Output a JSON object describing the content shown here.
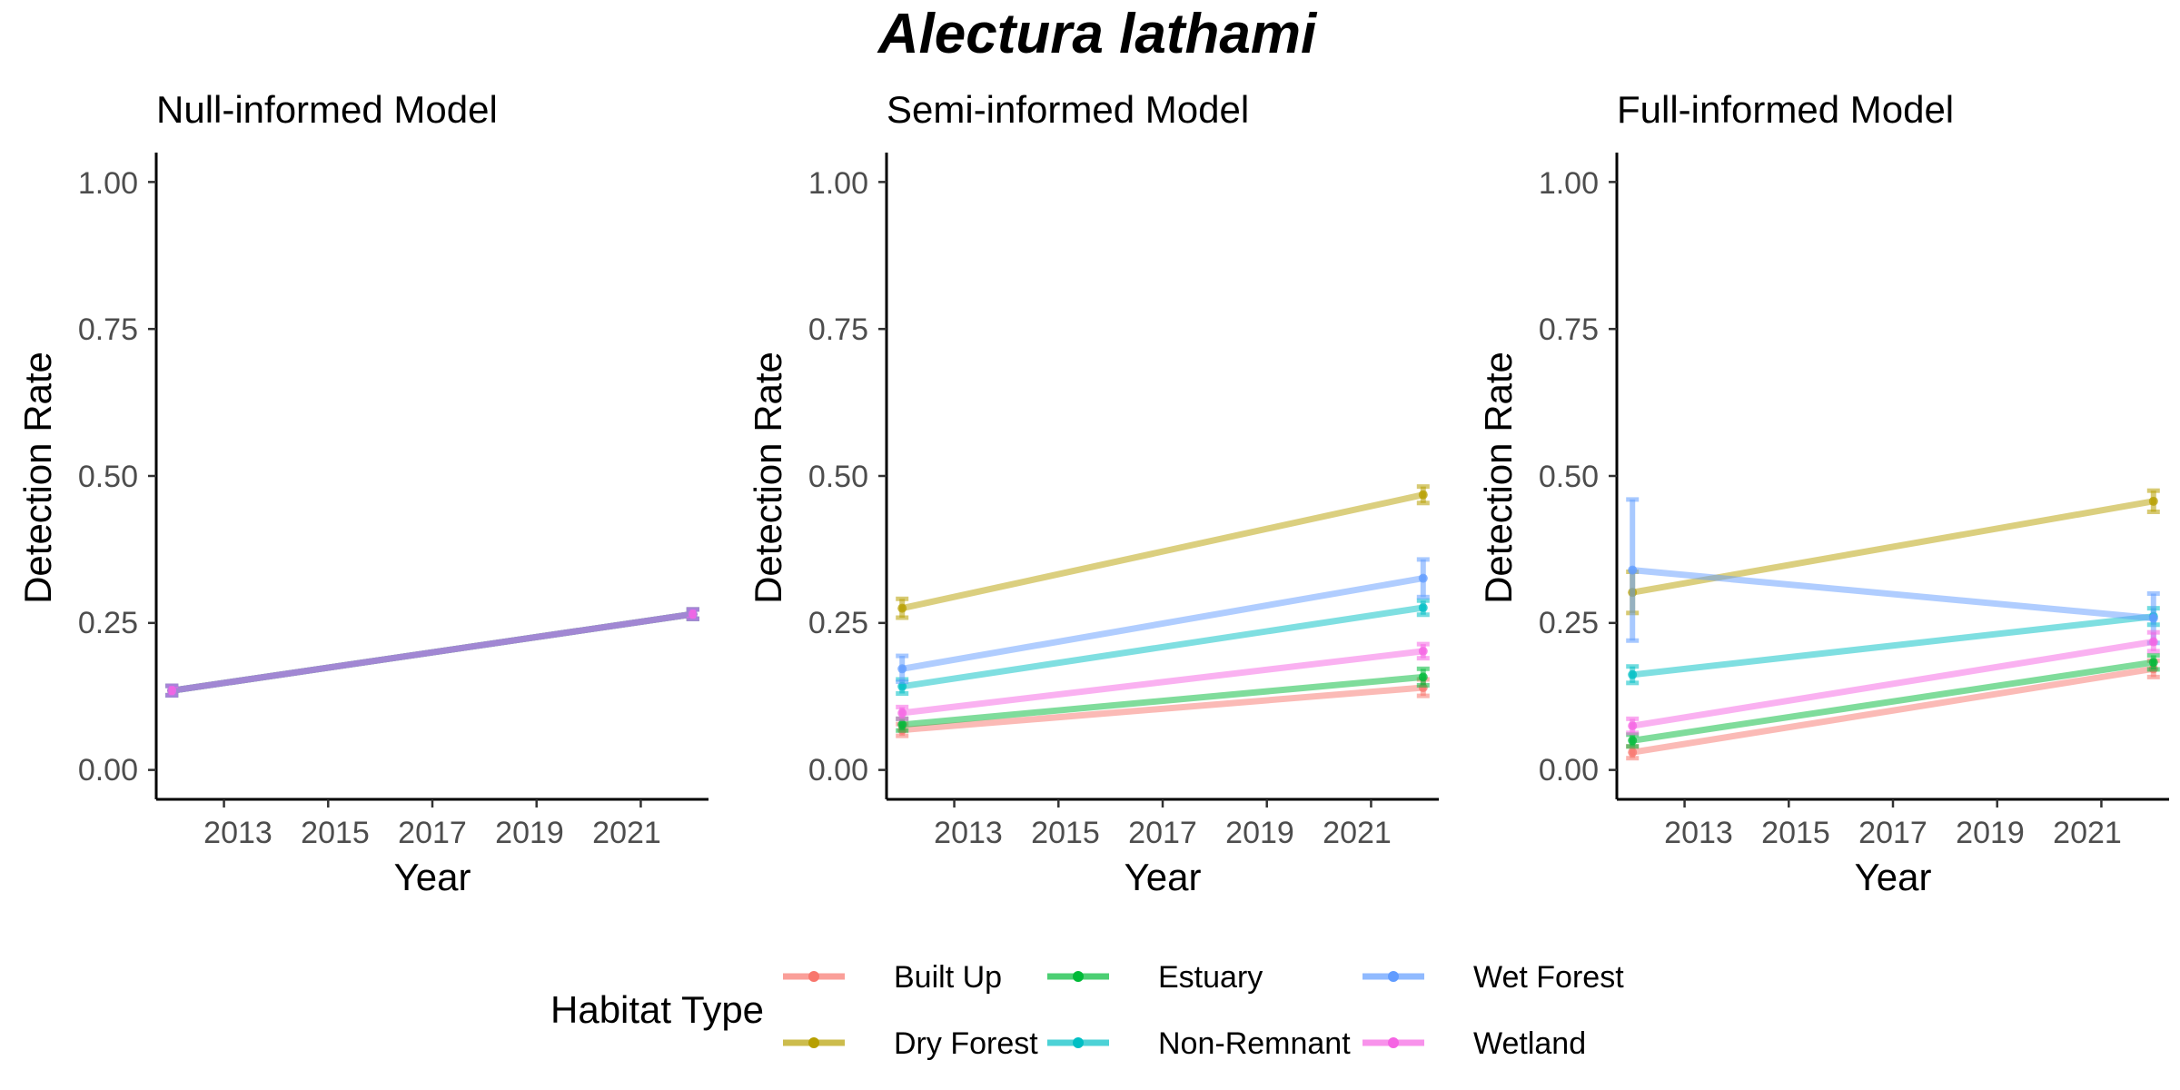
{
  "figure_title": "Alectura lathami",
  "colors": {
    "Built Up": "#F8766D",
    "Dry Forest": "#B79F00",
    "Estuary": "#00BA38",
    "Non-Remnant": "#00BFC4",
    "Wet Forest": "#619CFF",
    "Wetland": "#F564E3"
  },
  "legend": {
    "title": "Habitat Type",
    "items": [
      "Built Up",
      "Dry Forest",
      "Estuary",
      "Non-Remnant",
      "Wet Forest",
      "Wetland"
    ]
  },
  "chart_data": [
    {
      "type": "line",
      "title": "Null-informed Model",
      "xlabel": "Year",
      "ylabel": "Detection Rate",
      "xlim": [
        2011.7,
        2022.3
      ],
      "ylim": [
        -0.05,
        1.05
      ],
      "xticks": [
        2013,
        2015,
        2017,
        2019,
        2021
      ],
      "xtick_labels": [
        "2013",
        "2015",
        "2017",
        "2019",
        "2021"
      ],
      "yticks": [
        0,
        0.25,
        0.5,
        0.75,
        1
      ],
      "ytick_labels": [
        "0.00",
        "0.25",
        "0.50",
        "0.75",
        "1.00"
      ],
      "grid": false,
      "series": [
        {
          "name": "Built Up",
          "x": [
            2012,
            2022
          ],
          "y": [
            0.135,
            0.265
          ],
          "err": [
            0.008,
            0.008
          ]
        },
        {
          "name": "Dry Forest",
          "x": [
            2012,
            2022
          ],
          "y": [
            0.135,
            0.265
          ],
          "err": [
            0.008,
            0.008
          ]
        },
        {
          "name": "Estuary",
          "x": [
            2012,
            2022
          ],
          "y": [
            0.135,
            0.265
          ],
          "err": [
            0.008,
            0.008
          ]
        },
        {
          "name": "Non-Remnant",
          "x": [
            2012,
            2022
          ],
          "y": [
            0.135,
            0.265
          ],
          "err": [
            0.008,
            0.008
          ]
        },
        {
          "name": "Wet Forest",
          "x": [
            2012,
            2022
          ],
          "y": [
            0.135,
            0.265
          ],
          "err": [
            0.008,
            0.008
          ]
        },
        {
          "name": "Wetland",
          "x": [
            2012,
            2022
          ],
          "y": [
            0.135,
            0.265
          ],
          "err": [
            0.008,
            0.008
          ]
        }
      ]
    },
    {
      "type": "line",
      "title": "Semi-informed Model",
      "xlabel": "Year",
      "ylabel": "Detection Rate",
      "xlim": [
        2011.7,
        2022.3
      ],
      "ylim": [
        -0.05,
        1.05
      ],
      "xticks": [
        2013,
        2015,
        2017,
        2019,
        2021
      ],
      "xtick_labels": [
        "2013",
        "2015",
        "2017",
        "2019",
        "2021"
      ],
      "yticks": [
        0,
        0.25,
        0.5,
        0.75,
        1
      ],
      "ytick_labels": [
        "0.00",
        "0.25",
        "0.50",
        "0.75",
        "1.00"
      ],
      "grid": false,
      "series": [
        {
          "name": "Built Up",
          "x": [
            2012,
            2022
          ],
          "y": [
            0.068,
            0.14
          ],
          "err": [
            0.01,
            0.014
          ]
        },
        {
          "name": "Dry Forest",
          "x": [
            2012,
            2022
          ],
          "y": [
            0.275,
            0.468
          ],
          "err": [
            0.016,
            0.014
          ]
        },
        {
          "name": "Estuary",
          "x": [
            2012,
            2022
          ],
          "y": [
            0.077,
            0.158
          ],
          "err": [
            0.01,
            0.014
          ]
        },
        {
          "name": "Non-Remnant",
          "x": [
            2012,
            2022
          ],
          "y": [
            0.142,
            0.276
          ],
          "err": [
            0.012,
            0.012
          ]
        },
        {
          "name": "Wet Forest",
          "x": [
            2012,
            2022
          ],
          "y": [
            0.172,
            0.326
          ],
          "err": [
            0.022,
            0.032
          ]
        },
        {
          "name": "Wetland",
          "x": [
            2012,
            2022
          ],
          "y": [
            0.097,
            0.202
          ],
          "err": [
            0.01,
            0.012
          ]
        }
      ]
    },
    {
      "type": "line",
      "title": "Full-informed Model",
      "xlabel": "Year",
      "ylabel": "Detection Rate",
      "xlim": [
        2011.7,
        2022.3
      ],
      "ylim": [
        -0.05,
        1.05
      ],
      "xticks": [
        2013,
        2015,
        2017,
        2019,
        2021
      ],
      "xtick_labels": [
        "2013",
        "2015",
        "2017",
        "2019",
        "2021"
      ],
      "yticks": [
        0,
        0.25,
        0.5,
        0.75,
        1
      ],
      "ytick_labels": [
        "0.00",
        "0.25",
        "0.50",
        "0.75",
        "1.00"
      ],
      "grid": false,
      "series": [
        {
          "name": "Built Up",
          "x": [
            2012,
            2022
          ],
          "y": [
            0.03,
            0.172
          ],
          "err": [
            0.01,
            0.014
          ]
        },
        {
          "name": "Dry Forest",
          "x": [
            2012,
            2022
          ],
          "y": [
            0.302,
            0.457
          ],
          "err": [
            0.035,
            0.018
          ]
        },
        {
          "name": "Estuary",
          "x": [
            2012,
            2022
          ],
          "y": [
            0.05,
            0.183
          ],
          "err": [
            0.01,
            0.012
          ]
        },
        {
          "name": "Non-Remnant",
          "x": [
            2012,
            2022
          ],
          "y": [
            0.162,
            0.261
          ],
          "err": [
            0.014,
            0.014
          ]
        },
        {
          "name": "Wet Forest",
          "x": [
            2012,
            2022
          ],
          "y": [
            0.34,
            0.258
          ],
          "err": [
            0.12,
            0.042
          ]
        },
        {
          "name": "Wetland",
          "x": [
            2012,
            2022
          ],
          "y": [
            0.075,
            0.218
          ],
          "err": [
            0.012,
            0.016
          ]
        }
      ]
    }
  ]
}
